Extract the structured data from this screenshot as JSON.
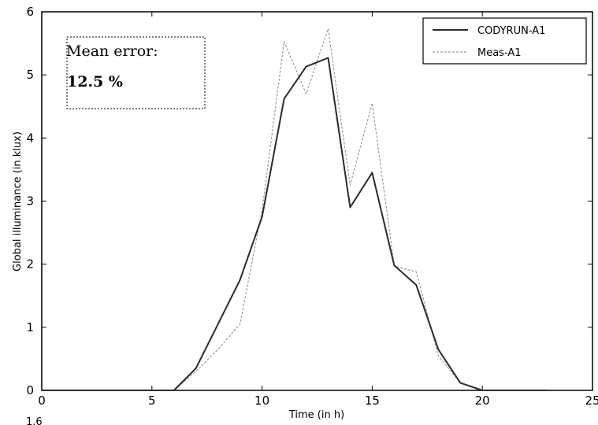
{
  "chart_data": {
    "type": "line",
    "xlabel": "Time (in h)",
    "ylabel": "Global illuminance (in klux)",
    "xlim": [
      0,
      25
    ],
    "ylim": [
      0,
      6
    ],
    "xticks": [
      0,
      5,
      10,
      15,
      20,
      25
    ],
    "yticks": [
      0,
      1,
      2,
      3,
      4,
      5,
      6
    ],
    "grid": false,
    "legend_position": "top-right",
    "series": [
      {
        "name": "CODYRUN-A1",
        "style": "solid",
        "color": "#2b2b2b",
        "x": [
          0,
          1,
          2,
          3,
          4,
          5,
          6,
          7,
          8,
          9,
          10,
          11,
          12,
          13,
          14,
          15,
          16,
          17,
          18,
          19,
          20,
          21,
          22,
          23
        ],
        "y": [
          0,
          0,
          0,
          0,
          0,
          0,
          0,
          0.35,
          1.05,
          1.75,
          2.75,
          4.62,
          5.13,
          5.27,
          2.9,
          3.45,
          1.98,
          1.67,
          0.65,
          0.12,
          0,
          0,
          0,
          0
        ]
      },
      {
        "name": "Meas-A1",
        "style": "dashed",
        "color": "#9a9a9a",
        "x": [
          0,
          1,
          2,
          3,
          4,
          5,
          6,
          7,
          8,
          9,
          10,
          11,
          12,
          13,
          14,
          15,
          16,
          17,
          18,
          19,
          20,
          21,
          22,
          23
        ],
        "y": [
          0,
          0,
          0,
          0,
          0,
          0,
          0,
          0.3,
          0.65,
          1.05,
          2.85,
          5.53,
          4.7,
          5.73,
          3.25,
          4.55,
          1.97,
          1.88,
          0.55,
          0.12,
          0,
          0,
          0,
          0
        ]
      }
    ],
    "annotation": {
      "title": "Mean error:",
      "value": "12.5 %"
    }
  },
  "corner_text": "1.6"
}
